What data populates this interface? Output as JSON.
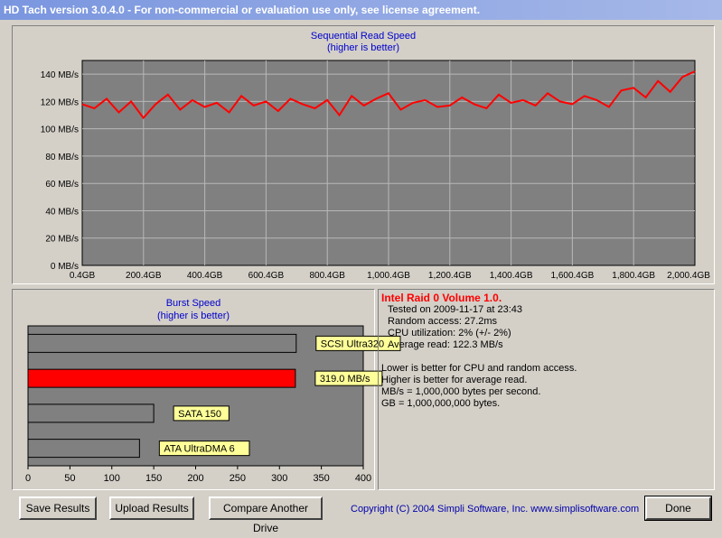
{
  "window": {
    "title": "HD Tach version 3.0.4.0  - For non-commercial or evaluation use only, see license agreement."
  },
  "colors": {
    "read_line": "#ff0000",
    "panel_bg": "#808080",
    "label_bg": "#ffff99",
    "burst_drive": "#ff0000",
    "burst_other": "#808080"
  },
  "seq_chart": {
    "title": "Sequential Read Speed",
    "subtitle": "(higher is better)",
    "chart_data": {
      "type": "line",
      "title": "Sequential Read Speed",
      "subtitle": "(higher is better)",
      "x_unit": "GB",
      "xlim": [
        0.4,
        2000.4
      ],
      "ylim": [
        0,
        150
      ],
      "grid": true,
      "x_tick_labels": [
        "0.4GB",
        "200.4GB",
        "400.4GB",
        "600.4GB",
        "800.4GB",
        "1,000.4GB",
        "1,200.4GB",
        "1,400.4GB",
        "1,600.4GB",
        "1,800.4GB",
        "2,000.4GB"
      ],
      "y_tick_labels": [
        "0 MB/s",
        "20 MB/s",
        "40 MB/s",
        "60 MB/s",
        "80 MB/s",
        "100 MB/s",
        "120 MB/s",
        "140 MB/s"
      ],
      "series": [
        {
          "x": [
            0.4,
            40,
            80,
            120,
            160,
            200,
            240,
            280,
            320,
            360,
            400,
            440,
            480,
            520,
            560,
            600,
            640,
            680,
            720,
            760,
            800,
            840,
            880,
            920,
            960,
            1000,
            1040,
            1080,
            1120,
            1160,
            1200,
            1240,
            1280,
            1320,
            1360,
            1400,
            1440,
            1480,
            1520,
            1560,
            1600,
            1640,
            1680,
            1720,
            1760,
            1800,
            1840,
            1880,
            1920,
            1960,
            2000.4
          ],
          "y": [
            118,
            115,
            122,
            112,
            120,
            108,
            118,
            125,
            114,
            121,
            116,
            119,
            112,
            124,
            117,
            120,
            113,
            122,
            118,
            115,
            121,
            110,
            124,
            117,
            122,
            126,
            114,
            119,
            121,
            116,
            117,
            123,
            118,
            115,
            125,
            119,
            121,
            117,
            126,
            120,
            118,
            124,
            121,
            116,
            128,
            130,
            123,
            135,
            127,
            138,
            142
          ]
        }
      ]
    }
  },
  "burst_chart": {
    "title": "Burst Speed",
    "subtitle": "(higher is better)",
    "chart_data": {
      "type": "bar",
      "title": "Burst Speed",
      "subtitle": "(higher is better)",
      "orientation": "horizontal",
      "xlim": [
        0,
        400
      ],
      "x_ticks": [
        0,
        50,
        100,
        150,
        200,
        250,
        300,
        350,
        400
      ],
      "categories": [
        "SCSI Ultra320",
        "319.0 MB/s",
        "SATA 150",
        "ATA UltraDMA 6"
      ],
      "values": [
        320,
        319,
        150,
        133
      ],
      "highlight_index": 1
    }
  },
  "results": {
    "drive_name": "Intel Raid 0 Volume 1.0.",
    "lines": [
      "Tested on 2009-11-17 at 23:43",
      "Random access: 27.2ms",
      "CPU utilization: 2% (+/- 2%)",
      "Average read: 122.3 MB/s"
    ],
    "notes": [
      "Lower is better for CPU and random access.",
      "Higher is better for average read.",
      "MB/s = 1,000,000 bytes per second.",
      "GB = 1,000,000,000 bytes."
    ]
  },
  "buttons": {
    "save": "Save Results",
    "upload": "Upload Results",
    "compare": "Compare Another Drive",
    "done": "Done"
  },
  "copyright": "Copyright (C) 2004 Simpli Software, Inc. www.simplisoftware.com"
}
